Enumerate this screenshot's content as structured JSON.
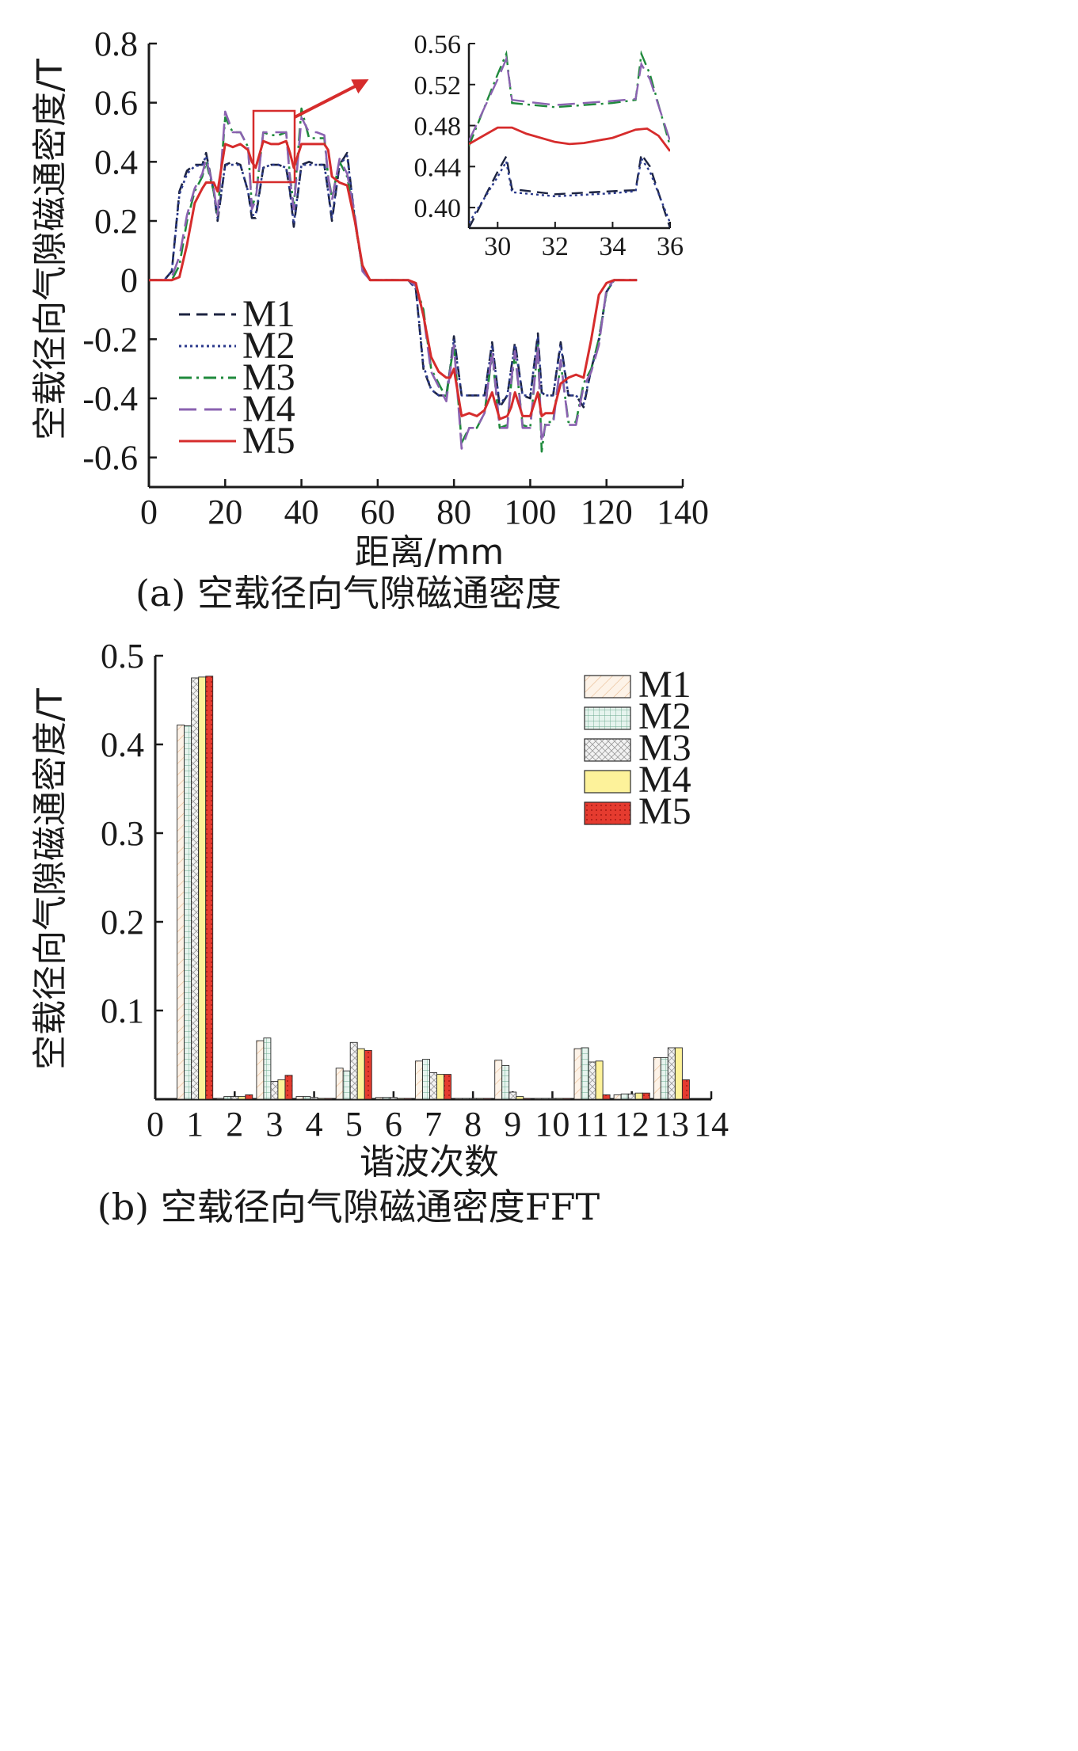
{
  "chart_data": [
    {
      "type": "line",
      "caption": "(a) 空载径向气隙磁通密度",
      "xlabel": "距离/mm",
      "ylabel": "空载径向气隙磁通密度/T",
      "xlim": [
        0,
        140
      ],
      "ylim": [
        -0.7,
        0.8
      ],
      "xticks": [
        "0",
        "20",
        "40",
        "60",
        "80",
        "100",
        "120",
        "140"
      ],
      "yticks": [
        "0.8",
        "0.6",
        "0.4",
        "0.2",
        "0",
        "-0.2",
        "-0.4",
        "-0.6"
      ],
      "grid": false,
      "legend_position": "lower-left",
      "series": [
        {
          "name": "M1",
          "color": "#1c2340",
          "dash": "dash",
          "x": [
            0,
            4,
            6,
            8,
            10,
            12,
            14,
            15,
            17,
            18,
            20,
            22,
            24,
            26,
            27,
            28,
            30,
            32,
            34,
            36,
            37,
            38,
            40,
            42,
            44,
            46,
            47,
            48,
            50,
            52,
            54,
            56,
            58,
            60,
            62,
            64,
            66,
            68,
            70,
            72,
            74,
            76,
            78,
            79,
            80,
            82,
            84,
            86,
            88,
            90,
            92,
            94,
            95,
            96,
            98,
            100,
            102,
            103,
            104,
            106,
            108,
            110,
            112,
            114,
            116,
            118,
            120,
            122,
            124,
            126,
            128
          ],
          "y": [
            0,
            0,
            0.03,
            0.3,
            0.37,
            0.39,
            0.39,
            0.43,
            0.3,
            0.2,
            0.39,
            0.4,
            0.39,
            0.3,
            0.21,
            0.21,
            0.38,
            0.39,
            0.39,
            0.38,
            0.3,
            0.18,
            0.39,
            0.4,
            0.39,
            0.39,
            0.3,
            0.2,
            0.39,
            0.43,
            0.2,
            0.04,
            0,
            0,
            0,
            0,
            0,
            0,
            -0.03,
            -0.3,
            -0.37,
            -0.39,
            -0.39,
            -0.3,
            -0.19,
            -0.39,
            -0.39,
            -0.39,
            -0.39,
            -0.21,
            -0.43,
            -0.39,
            -0.3,
            -0.21,
            -0.39,
            -0.4,
            -0.18,
            -0.38,
            -0.39,
            -0.39,
            -0.21,
            -0.39,
            -0.39,
            -0.43,
            -0.3,
            -0.2,
            -0.04,
            0,
            0,
            0,
            0
          ]
        },
        {
          "name": "M2",
          "color": "#2b3a8c",
          "dash": "dot",
          "x": [
            0,
            4,
            6,
            8,
            10,
            12,
            14,
            15,
            17,
            18,
            20,
            22,
            24,
            26,
            27,
            28,
            30,
            32,
            34,
            36,
            37,
            38,
            40,
            42,
            44,
            46,
            47,
            48,
            50,
            52,
            54,
            56,
            58,
            60,
            62,
            64,
            66,
            68,
            70,
            72,
            74,
            76,
            78,
            79,
            80,
            82,
            84,
            86,
            88,
            90,
            92,
            94,
            95,
            96,
            98,
            100,
            102,
            103,
            104,
            106,
            108,
            110,
            112,
            114,
            116,
            118,
            120,
            122,
            124,
            126,
            128
          ],
          "y": [
            0,
            0,
            0.03,
            0.29,
            0.36,
            0.385,
            0.39,
            0.42,
            0.3,
            0.21,
            0.39,
            0.39,
            0.39,
            0.3,
            0.22,
            0.22,
            0.38,
            0.39,
            0.39,
            0.38,
            0.3,
            0.19,
            0.39,
            0.39,
            0.39,
            0.39,
            0.3,
            0.21,
            0.39,
            0.42,
            0.21,
            0.04,
            0,
            0,
            0,
            0,
            0,
            0,
            -0.03,
            -0.29,
            -0.37,
            -0.39,
            -0.39,
            -0.3,
            -0.2,
            -0.39,
            -0.39,
            -0.39,
            -0.39,
            -0.22,
            -0.42,
            -0.39,
            -0.3,
            -0.22,
            -0.39,
            -0.39,
            -0.19,
            -0.38,
            -0.39,
            -0.39,
            -0.22,
            -0.39,
            -0.39,
            -0.42,
            -0.3,
            -0.21,
            -0.04,
            0,
            0,
            0,
            0
          ]
        },
        {
          "name": "M3",
          "color": "#1f8a3c",
          "dash": "dashdot",
          "x": [
            0,
            4,
            6,
            8,
            10,
            12,
            14,
            15,
            17,
            18,
            20,
            22,
            24,
            26,
            27,
            28,
            30,
            32,
            34,
            36,
            37,
            38,
            40,
            42,
            44,
            46,
            47,
            48,
            50,
            52,
            54,
            56,
            58,
            60,
            62,
            64,
            66,
            68,
            70,
            72,
            74,
            76,
            78,
            79,
            80,
            82,
            84,
            86,
            88,
            90,
            92,
            94,
            95,
            96,
            98,
            100,
            102,
            103,
            104,
            106,
            108,
            110,
            112,
            114,
            116,
            118,
            120,
            122,
            124,
            126,
            128
          ],
          "y": [
            0,
            0,
            0,
            0.05,
            0.2,
            0.3,
            0.35,
            0.4,
            0.3,
            0.22,
            0.55,
            0.5,
            0.5,
            0.45,
            0.25,
            0.28,
            0.5,
            0.49,
            0.49,
            0.5,
            0.35,
            0.25,
            0.58,
            0.48,
            0.48,
            0.48,
            0.35,
            0.28,
            0.4,
            0.35,
            0.2,
            0.04,
            0,
            0,
            0,
            0,
            0,
            0,
            -0.02,
            -0.1,
            -0.3,
            -0.35,
            -0.4,
            -0.3,
            -0.22,
            -0.55,
            -0.5,
            -0.5,
            -0.45,
            -0.25,
            -0.5,
            -0.49,
            -0.35,
            -0.25,
            -0.49,
            -0.5,
            -0.22,
            -0.58,
            -0.48,
            -0.48,
            -0.28,
            -0.48,
            -0.48,
            -0.35,
            -0.3,
            -0.2,
            -0.04,
            0,
            0,
            0,
            0
          ]
        },
        {
          "name": "M4",
          "color": "#8a62b0",
          "dash": "longdash",
          "x": [
            0,
            4,
            6,
            8,
            10,
            12,
            14,
            15,
            17,
            18,
            20,
            22,
            24,
            26,
            27,
            28,
            30,
            32,
            34,
            36,
            37,
            38,
            40,
            42,
            44,
            46,
            47,
            48,
            50,
            52,
            54,
            56,
            58,
            60,
            62,
            64,
            66,
            68,
            70,
            72,
            74,
            76,
            78,
            79,
            80,
            82,
            84,
            86,
            88,
            90,
            92,
            94,
            95,
            96,
            98,
            100,
            102,
            103,
            104,
            106,
            108,
            110,
            112,
            114,
            116,
            118,
            120,
            122,
            124,
            126,
            128
          ],
          "y": [
            0,
            0,
            0.01,
            0.08,
            0.22,
            0.31,
            0.36,
            0.41,
            0.31,
            0.22,
            0.57,
            0.5,
            0.5,
            0.45,
            0.24,
            0.27,
            0.5,
            0.5,
            0.5,
            0.5,
            0.34,
            0.24,
            0.55,
            0.5,
            0.5,
            0.49,
            0.35,
            0.27,
            0.41,
            0.36,
            0.22,
            0.03,
            0,
            0,
            0,
            0,
            0,
            0,
            -0.02,
            -0.12,
            -0.31,
            -0.36,
            -0.41,
            -0.31,
            -0.22,
            -0.57,
            -0.5,
            -0.5,
            -0.45,
            -0.24,
            -0.5,
            -0.5,
            -0.34,
            -0.24,
            -0.5,
            -0.5,
            -0.22,
            -0.55,
            -0.49,
            -0.49,
            -0.27,
            -0.49,
            -0.49,
            -0.36,
            -0.31,
            -0.22,
            -0.03,
            0,
            0,
            0,
            0
          ]
        },
        {
          "name": "M5",
          "color": "#d62c2c",
          "dash": "solid",
          "x": [
            0,
            4,
            6,
            8,
            10,
            12,
            14,
            15,
            17,
            18,
            20,
            22,
            24,
            26,
            27,
            28,
            30,
            32,
            34,
            36,
            37,
            38,
            40,
            42,
            44,
            46,
            47,
            48,
            50,
            52,
            54,
            56,
            58,
            60,
            62,
            64,
            66,
            68,
            70,
            72,
            74,
            76,
            78,
            79,
            80,
            82,
            84,
            86,
            88,
            90,
            92,
            94,
            95,
            96,
            98,
            100,
            102,
            103,
            104,
            106,
            108,
            110,
            112,
            114,
            116,
            118,
            120,
            122,
            124,
            126,
            128
          ],
          "y": [
            0,
            0,
            0,
            0.01,
            0.12,
            0.26,
            0.31,
            0.33,
            0.33,
            0.3,
            0.46,
            0.45,
            0.46,
            0.44,
            0.4,
            0.38,
            0.47,
            0.46,
            0.46,
            0.47,
            0.43,
            0.38,
            0.46,
            0.46,
            0.46,
            0.46,
            0.44,
            0.35,
            0.33,
            0.32,
            0.2,
            0.05,
            0,
            0,
            0,
            0,
            0,
            0,
            -0.01,
            -0.12,
            -0.26,
            -0.31,
            -0.33,
            -0.33,
            -0.3,
            -0.46,
            -0.45,
            -0.46,
            -0.44,
            -0.38,
            -0.47,
            -0.46,
            -0.43,
            -0.38,
            -0.46,
            -0.46,
            -0.38,
            -0.46,
            -0.45,
            -0.45,
            -0.35,
            -0.33,
            -0.32,
            -0.33,
            -0.2,
            -0.05,
            -0.01,
            0,
            0,
            0,
            0
          ]
        }
      ]
    },
    {
      "type": "line",
      "role": "inset zoom of panel (a)",
      "xlim": [
        29,
        36
      ],
      "ylim": [
        0.38,
        0.56
      ],
      "xticks": [
        "30",
        "32",
        "34",
        "36"
      ],
      "yticks": [
        "0.56",
        "0.52",
        "0.48",
        "0.44",
        "0.40"
      ],
      "series": [
        {
          "name": "M1",
          "x": [
            29,
            30,
            30.3,
            30.5,
            32,
            34,
            34.8,
            35,
            35.3,
            36
          ],
          "y": [
            0.38,
            0.435,
            0.45,
            0.418,
            0.413,
            0.416,
            0.417,
            0.452,
            0.44,
            0.38
          ]
        },
        {
          "name": "M2",
          "x": [
            29,
            30,
            30.3,
            30.5,
            32,
            34,
            34.8,
            35,
            35.3,
            36
          ],
          "y": [
            0.385,
            0.43,
            0.445,
            0.415,
            0.411,
            0.414,
            0.416,
            0.448,
            0.435,
            0.385
          ]
        },
        {
          "name": "M3",
          "x": [
            29,
            30,
            30.3,
            30.5,
            32,
            34,
            34.8,
            35,
            35.3,
            36
          ],
          "y": [
            0.46,
            0.53,
            0.55,
            0.502,
            0.498,
            0.502,
            0.505,
            0.55,
            0.53,
            0.46
          ]
        },
        {
          "name": "M4",
          "x": [
            29,
            30,
            30.3,
            30.5,
            32,
            34,
            34.8,
            35,
            35.3,
            36
          ],
          "y": [
            0.465,
            0.525,
            0.545,
            0.505,
            0.5,
            0.504,
            0.506,
            0.54,
            0.525,
            0.465
          ]
        },
        {
          "name": "M5",
          "x": [
            29,
            29.5,
            30,
            30.5,
            31,
            32,
            32.5,
            33,
            34,
            34.8,
            35.2,
            35.6,
            36
          ],
          "y": [
            0.462,
            0.47,
            0.478,
            0.478,
            0.472,
            0.464,
            0.462,
            0.463,
            0.468,
            0.476,
            0.477,
            0.47,
            0.455
          ]
        }
      ]
    },
    {
      "type": "bar",
      "caption": "(b) 空载径向气隙磁通密度FFT",
      "xlabel": "谐波次数",
      "ylabel": "空载径向气隙磁通密度/T",
      "xlim": [
        0,
        14
      ],
      "ylim": [
        0,
        0.5
      ],
      "xticks": [
        "0",
        "1",
        "2",
        "3",
        "4",
        "5",
        "6",
        "7",
        "8",
        "9",
        "10",
        "11",
        "12",
        "13",
        "14"
      ],
      "yticks": [
        "0.5",
        "0.4",
        "0.3",
        "0.2",
        "0.1"
      ],
      "grid": false,
      "legend_position": "top-right",
      "categories": [
        1,
        2,
        3,
        4,
        5,
        6,
        7,
        8,
        9,
        10,
        11,
        12,
        13
      ],
      "series": [
        {
          "name": "M1",
          "color": "#fdf3e8",
          "pattern": "diagonal",
          "values": [
            0.422,
            0.001,
            0.066,
            0.003,
            0.035,
            0.002,
            0.043,
            0.001,
            0.044,
            0.001,
            0.057,
            0.005,
            0.047
          ]
        },
        {
          "name": "M2",
          "color": "#e6f4ee",
          "pattern": "grid",
          "values": [
            0.421,
            0.003,
            0.069,
            0.003,
            0.032,
            0.002,
            0.045,
            0.001,
            0.038,
            0.001,
            0.058,
            0.006,
            0.047
          ]
        },
        {
          "name": "M3",
          "color": "#eeeeee",
          "pattern": "crosshatch",
          "values": [
            0.475,
            0.003,
            0.02,
            0.002,
            0.064,
            0.002,
            0.03,
            0.001,
            0.008,
            0.001,
            0.042,
            0.006,
            0.058
          ]
        },
        {
          "name": "M4",
          "color": "#fdf29a",
          "pattern": "solid",
          "values": [
            0.476,
            0.003,
            0.022,
            0.001,
            0.057,
            0.001,
            0.028,
            0.001,
            0.003,
            0.001,
            0.043,
            0.007,
            0.058
          ]
        },
        {
          "name": "M5",
          "color": "#e53b2f",
          "pattern": "dots",
          "values": [
            0.477,
            0.005,
            0.027,
            0.001,
            0.055,
            0.001,
            0.028,
            0.001,
            0.001,
            0.001,
            0.005,
            0.007,
            0.022
          ]
        }
      ]
    }
  ]
}
